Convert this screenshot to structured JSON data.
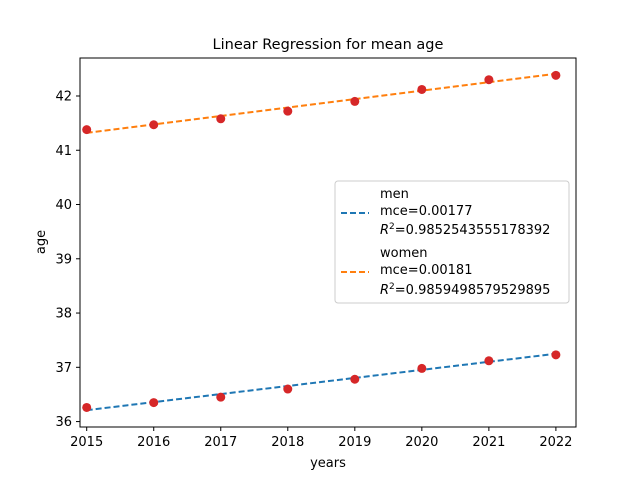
{
  "chart_data": {
    "type": "scatter",
    "title": "Linear Regression for mean age",
    "xlabel": "years",
    "ylabel": "age",
    "xlim": [
      2014.9,
      2022.3
    ],
    "ylim": [
      35.9,
      42.7
    ],
    "x_ticks": [
      2015,
      2016,
      2017,
      2018,
      2019,
      2020,
      2021,
      2022
    ],
    "y_ticks": [
      36,
      37,
      38,
      39,
      40,
      41,
      42
    ],
    "grid": false,
    "legend_position": "center-right",
    "point_color": "#d62728",
    "series": [
      {
        "name": "men",
        "x": [
          2015,
          2016,
          2017,
          2018,
          2019,
          2020,
          2021,
          2022
        ],
        "y": [
          36.26,
          36.35,
          36.45,
          36.6,
          36.78,
          36.98,
          37.12,
          37.23
        ],
        "fit": {
          "x": [
            2015,
            2022
          ],
          "y": [
            36.21,
            37.25
          ]
        },
        "line_color": "#1f77b4",
        "mce": "mce=0.00177",
        "r2_value": "=0.9852543555178392"
      },
      {
        "name": "women",
        "x": [
          2015,
          2016,
          2017,
          2018,
          2019,
          2020,
          2021,
          2022
        ],
        "y": [
          41.38,
          41.47,
          41.58,
          41.72,
          41.9,
          42.12,
          42.3,
          42.38
        ],
        "fit": {
          "x": [
            2015,
            2022
          ],
          "y": [
            41.32,
            42.41
          ]
        },
        "line_color": "#ff7f0e",
        "mce": "mce=0.00181",
        "r2_value": "=0.9859498579529895"
      }
    ]
  }
}
